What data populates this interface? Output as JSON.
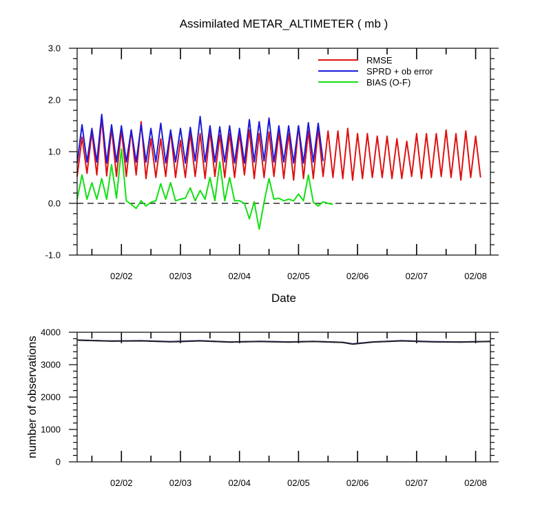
{
  "chart_data": [
    {
      "type": "line",
      "title": "Assimilated METAR_ALTIMETER ( mb )",
      "xlabel": "Date",
      "ylabel": "",
      "xlim": [
        0,
        84
      ],
      "ylim": [
        -1.0,
        3.0
      ],
      "y_ticks": [
        -1.0,
        0.0,
        1.0,
        2.0,
        3.0
      ],
      "y_tick_labels": [
        "-1.0",
        "0.0",
        "1.0",
        "2.0",
        "3.0"
      ],
      "x_ticks": [
        9,
        21,
        33,
        45,
        57,
        69,
        81
      ],
      "x_tick_labels": [
        "02/02",
        "02/03",
        "02/04",
        "02/05",
        "02/06",
        "02/07",
        "02/08"
      ],
      "zero_line": true,
      "legend_position": "top-right",
      "series": [
        {
          "name": "RMSE",
          "color": "#e01010",
          "y": [
            0.52,
            1.28,
            0.58,
            1.38,
            0.55,
            1.65,
            0.53,
            1.45,
            0.52,
            1.42,
            0.52,
            1.42,
            0.55,
            1.58,
            0.48,
            1.25,
            0.5,
            1.25,
            0.52,
            1.4,
            0.5,
            1.22,
            0.5,
            1.35,
            0.52,
            1.35,
            0.48,
            1.4,
            0.52,
            1.32,
            0.5,
            1.35,
            0.5,
            1.35,
            0.55,
            1.42,
            0.48,
            1.35,
            0.5,
            1.38,
            0.52,
            1.38,
            0.48,
            1.35,
            0.45,
            1.5,
            0.48,
            1.4,
            0.48,
            1.45,
            0.52,
            1.4,
            0.5,
            1.4,
            0.48,
            1.45,
            0.45,
            1.35,
            0.48,
            1.35,
            0.5,
            1.3,
            0.5,
            1.3,
            0.48,
            1.25,
            0.48,
            1.2,
            0.52,
            1.35,
            0.48,
            1.35,
            0.5,
            1.35,
            0.52,
            1.42,
            0.5,
            1.35,
            0.45,
            1.4,
            0.5,
            1.3,
            0.5
          ]
        },
        {
          "name": "SPRD + ob error",
          "color": "#1a1adb",
          "y": [
            0.78,
            1.52,
            0.8,
            1.45,
            0.8,
            1.72,
            0.78,
            1.52,
            0.8,
            1.5,
            0.8,
            1.42,
            0.8,
            1.52,
            0.8,
            1.45,
            0.8,
            1.55,
            0.78,
            1.42,
            0.8,
            1.45,
            0.78,
            1.47,
            0.82,
            1.68,
            0.8,
            1.5,
            0.8,
            1.48,
            0.8,
            1.5,
            0.78,
            1.45,
            0.78,
            1.62,
            0.8,
            1.58,
            0.82,
            1.65,
            0.8,
            1.5,
            0.8,
            1.5,
            0.78,
            1.5,
            0.78,
            1.56,
            0.8,
            1.55,
            0.82
          ]
        },
        {
          "name": "BIAS (O-F)",
          "color": "#10e010",
          "y": [
            0.08,
            0.55,
            0.08,
            0.4,
            0.08,
            0.48,
            0.08,
            0.75,
            0.1,
            1.05,
            0.05,
            -0.02,
            -0.1,
            0.05,
            -0.05,
            0.02,
            0.05,
            0.38,
            0.08,
            0.4,
            0.05,
            0.08,
            0.1,
            0.3,
            0.05,
            0.25,
            0.08,
            0.5,
            0.05,
            0.8,
            0.05,
            0.5,
            0.05,
            0.05,
            0.0,
            -0.3,
            0.03,
            -0.5,
            0.02,
            0.48,
            0.08,
            0.1,
            0.05,
            0.08,
            0.05,
            0.18,
            0.05,
            0.55,
            0.02,
            -0.05,
            0.03,
            0.0,
            -0.02
          ]
        }
      ]
    },
    {
      "type": "line",
      "title": "",
      "xlabel": "",
      "ylabel": "number of observations",
      "xlim": [
        0,
        84
      ],
      "ylim": [
        0,
        4000
      ],
      "y_ticks": [
        0,
        1000,
        2000,
        3000,
        4000
      ],
      "y_tick_labels": [
        "0",
        "1000",
        "2000",
        "3000",
        "4000"
      ],
      "x_ticks": [
        9,
        21,
        33,
        45,
        57,
        69,
        81
      ],
      "x_tick_labels": [
        "02/02",
        "02/03",
        "02/04",
        "02/05",
        "02/06",
        "02/07",
        "02/08"
      ],
      "series": [
        {
          "color": "#1a1adb",
          "x": [
            0,
            7,
            13,
            19,
            25,
            31,
            37,
            43,
            48,
            54,
            56,
            60,
            66,
            72,
            78,
            84
          ],
          "y": [
            3760,
            3730,
            3740,
            3710,
            3740,
            3700,
            3720,
            3700,
            3720,
            3690,
            3640,
            3700,
            3740,
            3710,
            3700,
            3720
          ]
        },
        {
          "color": "#222222",
          "x": [
            0,
            7,
            13,
            19,
            25,
            31,
            37,
            43,
            48,
            54,
            56,
            60,
            66,
            72,
            78,
            84
          ],
          "y": [
            3755,
            3725,
            3735,
            3705,
            3735,
            3695,
            3715,
            3695,
            3715,
            3685,
            3635,
            3695,
            3735,
            3705,
            3695,
            3715
          ]
        }
      ]
    }
  ]
}
